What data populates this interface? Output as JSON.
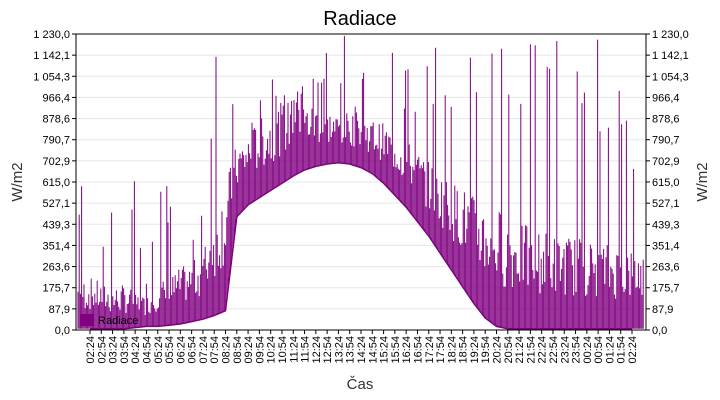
{
  "chart_data": {
    "type": "line",
    "title": "Radiace",
    "xlabel": "Čas",
    "ylabel_left": "W/m2",
    "ylabel_right": "W/m2",
    "ylim": [
      0,
      1230
    ],
    "grid": true,
    "y_ticks": [
      "0,0",
      "87,9",
      "175,7",
      "263,6",
      "351,4",
      "439,3",
      "527,1",
      "615,0",
      "702,9",
      "790,7",
      "878,6",
      "966,4",
      "1 054,3",
      "1 142,1",
      "1 230,0"
    ],
    "x_ticks": [
      "02:24",
      "02:54",
      "03:24",
      "03:54",
      "04:24",
      "04:54",
      "05:24",
      "05:54",
      "06:24",
      "06:54",
      "07:24",
      "07:54",
      "08:24",
      "08:54",
      "09:24",
      "09:54",
      "10:24",
      "10:54",
      "11:24",
      "11:54",
      "12:24",
      "12:54",
      "13:24",
      "13:54",
      "14:24",
      "14:54",
      "15:24",
      "15:54",
      "16:24",
      "16:54",
      "17:24",
      "17:54",
      "18:24",
      "18:54",
      "19:24",
      "19:54",
      "20:24",
      "20:54",
      "21:24",
      "21:54",
      "22:24",
      "22:54",
      "23:24",
      "23:54",
      "00:24",
      "00:54",
      "01:24",
      "01:54",
      "02:24"
    ],
    "series": [
      {
        "name": "Radiace",
        "color": "#800080",
        "x": [
          "02:24",
          "02:54",
          "03:24",
          "03:54",
          "04:24",
          "04:54",
          "05:24",
          "05:54",
          "06:24",
          "06:54",
          "07:24",
          "07:54",
          "08:24",
          "08:54",
          "09:24",
          "09:54",
          "10:24",
          "10:54",
          "11:24",
          "11:54",
          "12:24",
          "12:54",
          "13:24",
          "13:54",
          "14:24",
          "14:54",
          "15:24",
          "15:54",
          "16:24",
          "16:54",
          "17:24",
          "17:54",
          "18:24",
          "18:54",
          "19:24",
          "19:54",
          "20:24",
          "20:54",
          "21:24",
          "21:54",
          "22:24",
          "22:54",
          "23:24",
          "23:54",
          "00:24",
          "00:54",
          "01:24",
          "01:54",
          "02:24"
        ],
        "baseline": [
          5,
          5,
          5,
          5,
          10,
          15,
          15,
          20,
          25,
          35,
          45,
          60,
          80,
          470,
          520,
          550,
          580,
          610,
          640,
          665,
          680,
          690,
          695,
          690,
          675,
          650,
          610,
          560,
          510,
          450,
          390,
          320,
          250,
          180,
          110,
          50,
          15,
          5,
          5,
          5,
          5,
          5,
          5,
          5,
          5,
          5,
          5,
          5,
          5
        ],
        "upper": [
          220,
          200,
          180,
          190,
          160,
          140,
          200,
          220,
          260,
          280,
          330,
          500,
          620,
          780,
          820,
          880,
          900,
          950,
          960,
          950,
          940,
          920,
          900,
          910,
          900,
          880,
          860,
          830,
          790,
          750,
          700,
          660,
          620,
          600,
          560,
          540,
          520,
          470,
          450,
          430,
          420,
          410,
          400,
          390,
          380,
          370,
          360,
          350,
          340
        ],
        "peak": [
          620,
          300,
          620,
          620,
          620,
          270,
          620,
          620,
          300,
          440,
          600,
          1230,
          1230,
          1230,
          1150,
          1180,
          1230,
          1230,
          1230,
          1230,
          1230,
          1230,
          1230,
          1230,
          1230,
          1230,
          1230,
          1230,
          1230,
          1230,
          1230,
          1230,
          1230,
          1230,
          1230,
          1230,
          1230,
          1230,
          1230,
          1230,
          1230,
          1230,
          1230,
          1230,
          1230,
          1230,
          880,
          1230,
          700
        ]
      }
    ],
    "legend": [
      "Radiace"
    ]
  }
}
